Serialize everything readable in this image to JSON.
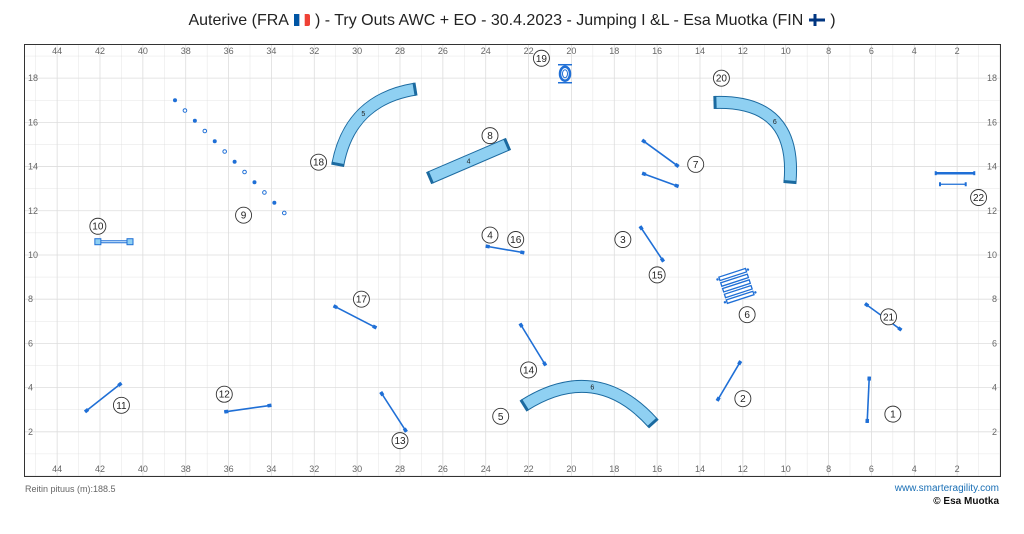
{
  "header": {
    "title_main": "Auterive (FRA",
    "title_rest": ") - Try Outs AWC + EO - 30.4.2023 - Jumping I &L - Esa Muotka (FIN",
    "title_end": ")",
    "flag_fra": {
      "colors": [
        "#0055a4",
        "#ffffff",
        "#ef4135"
      ]
    },
    "flag_fin": {
      "colors": [
        "#ffffff",
        "#003580"
      ]
    }
  },
  "footer": {
    "course_length": "Reitin pituus (m):188.5",
    "site": "www.smarteragility.com",
    "copyright": "© Esa Muotka"
  },
  "axes": {
    "x_ticks": [
      "44",
      "42",
      "40",
      "38",
      "36",
      "34",
      "32",
      "30",
      "28",
      "26",
      "24",
      "22",
      "20",
      "18",
      "16",
      "14",
      "12",
      "10",
      "8",
      "6",
      "4",
      "2"
    ],
    "y_ticks": [
      "18",
      "16",
      "14",
      "12",
      "10",
      "8",
      "6",
      "4",
      "2"
    ],
    "x_range": [
      45.5,
      0
    ],
    "y_range": [
      0,
      19.5
    ],
    "grid": true
  },
  "colors": {
    "obstacle": "#1f6fd6",
    "tunnel_fill": "#8fd0f2",
    "tunnel_stroke": "#1b6aa0",
    "tunnel_end": "#1b6aa0",
    "grid": "#dddddd",
    "frame": "#333333"
  },
  "obstacles": {
    "jumps": [
      {
        "x1": 6.1,
        "y1": 4.5,
        "x2": 6.2,
        "y2": 2.4
      },
      {
        "x1": 12.1,
        "y1": 5.2,
        "x2": 13.2,
        "y2": 3.4
      },
      {
        "x1": 16.8,
        "y1": 11.3,
        "x2": 15.7,
        "y2": 9.7
      },
      {
        "x1": 24.0,
        "y1": 10.4,
        "x2": 22.2,
        "y2": 10.1
      },
      {
        "x1": 22.4,
        "y1": 6.9,
        "x2": 21.2,
        "y2": 5.0
      },
      {
        "x1": 28.9,
        "y1": 3.8,
        "x2": 27.7,
        "y2": 2.0
      },
      {
        "x1": 31.1,
        "y1": 7.7,
        "x2": 29.1,
        "y2": 6.7
      },
      {
        "x1": 42.7,
        "y1": 2.9,
        "x2": 41.0,
        "y2": 4.2
      },
      {
        "x1": 36.2,
        "y1": 2.9,
        "x2": 34.0,
        "y2": 3.2
      },
      {
        "x1": 16.7,
        "y1": 13.7,
        "x2": 15.0,
        "y2": 13.1
      },
      {
        "x1": 16.7,
        "y1": 15.2,
        "x2": 15.0,
        "y2": 14.0
      },
      {
        "x1": 6.3,
        "y1": 7.8,
        "x2": 4.6,
        "y2": 6.6
      }
    ],
    "tunnels": [
      {
        "label": "6",
        "x1": 22.2,
        "y1": 3.2,
        "x2": 16.2,
        "y2": 2.4,
        "bend": -1.2
      },
      {
        "label": "6",
        "x1": 13.3,
        "y1": 16.9,
        "x2": 9.8,
        "y2": 13.3,
        "bend": -1.6
      },
      {
        "label": "5",
        "x1": 30.9,
        "y1": 14.1,
        "x2": 27.3,
        "y2": 17.5,
        "bend": -1.0
      },
      {
        "label": "4",
        "x1": 26.6,
        "y1": 13.5,
        "x2": 23.0,
        "y2": 15.0,
        "bend": 0
      }
    ],
    "weave": {
      "x1": 38.5,
      "y1": 17.0,
      "x2": 33.4,
      "y2": 11.9,
      "poles": 12
    },
    "tire": {
      "x": 20.3,
      "y": 18.2
    },
    "table": {
      "x1": 42.1,
      "y1": 10.6,
      "x2": 40.6,
      "y2": 10.6
    },
    "wall": {
      "x1": 3.0,
      "y1": 13.7,
      "x2": 1.2,
      "y2": 13.7
    },
    "wall2": {
      "x1": 2.8,
      "y1": 13.2,
      "x2": 1.6,
      "y2": 13.2
    },
    "long_jump": {
      "x": 12.3,
      "y": 8.6,
      "boards": 5
    }
  },
  "numbers": [
    {
      "n": "1",
      "x": 5.0,
      "y": 2.8
    },
    {
      "n": "2",
      "x": 12.0,
      "y": 3.5
    },
    {
      "n": "3",
      "x": 17.6,
      "y": 10.7
    },
    {
      "n": "4",
      "x": 23.8,
      "y": 10.9
    },
    {
      "n": "5",
      "x": 23.3,
      "y": 2.7
    },
    {
      "n": "6",
      "x": 11.8,
      "y": 7.3
    },
    {
      "n": "7",
      "x": 14.2,
      "y": 14.1
    },
    {
      "n": "8",
      "x": 23.8,
      "y": 15.4
    },
    {
      "n": "9",
      "x": 35.3,
      "y": 11.8
    },
    {
      "n": "10",
      "x": 42.1,
      "y": 11.3
    },
    {
      "n": "11",
      "x": 41.0,
      "y": 3.2
    },
    {
      "n": "12",
      "x": 36.2,
      "y": 3.7
    },
    {
      "n": "13",
      "x": 28.0,
      "y": 1.6
    },
    {
      "n": "14",
      "x": 22.0,
      "y": 4.8
    },
    {
      "n": "15",
      "x": 16.0,
      "y": 9.1
    },
    {
      "n": "16",
      "x": 22.6,
      "y": 10.7
    },
    {
      "n": "17",
      "x": 29.8,
      "y": 8.0
    },
    {
      "n": "18",
      "x": 31.8,
      "y": 14.2
    },
    {
      "n": "19",
      "x": 21.4,
      "y": 18.9
    },
    {
      "n": "20",
      "x": 13.0,
      "y": 18.0
    },
    {
      "n": "21",
      "x": 5.2,
      "y": 7.2
    },
    {
      "n": "22",
      "x": 1.0,
      "y": 12.6
    }
  ]
}
